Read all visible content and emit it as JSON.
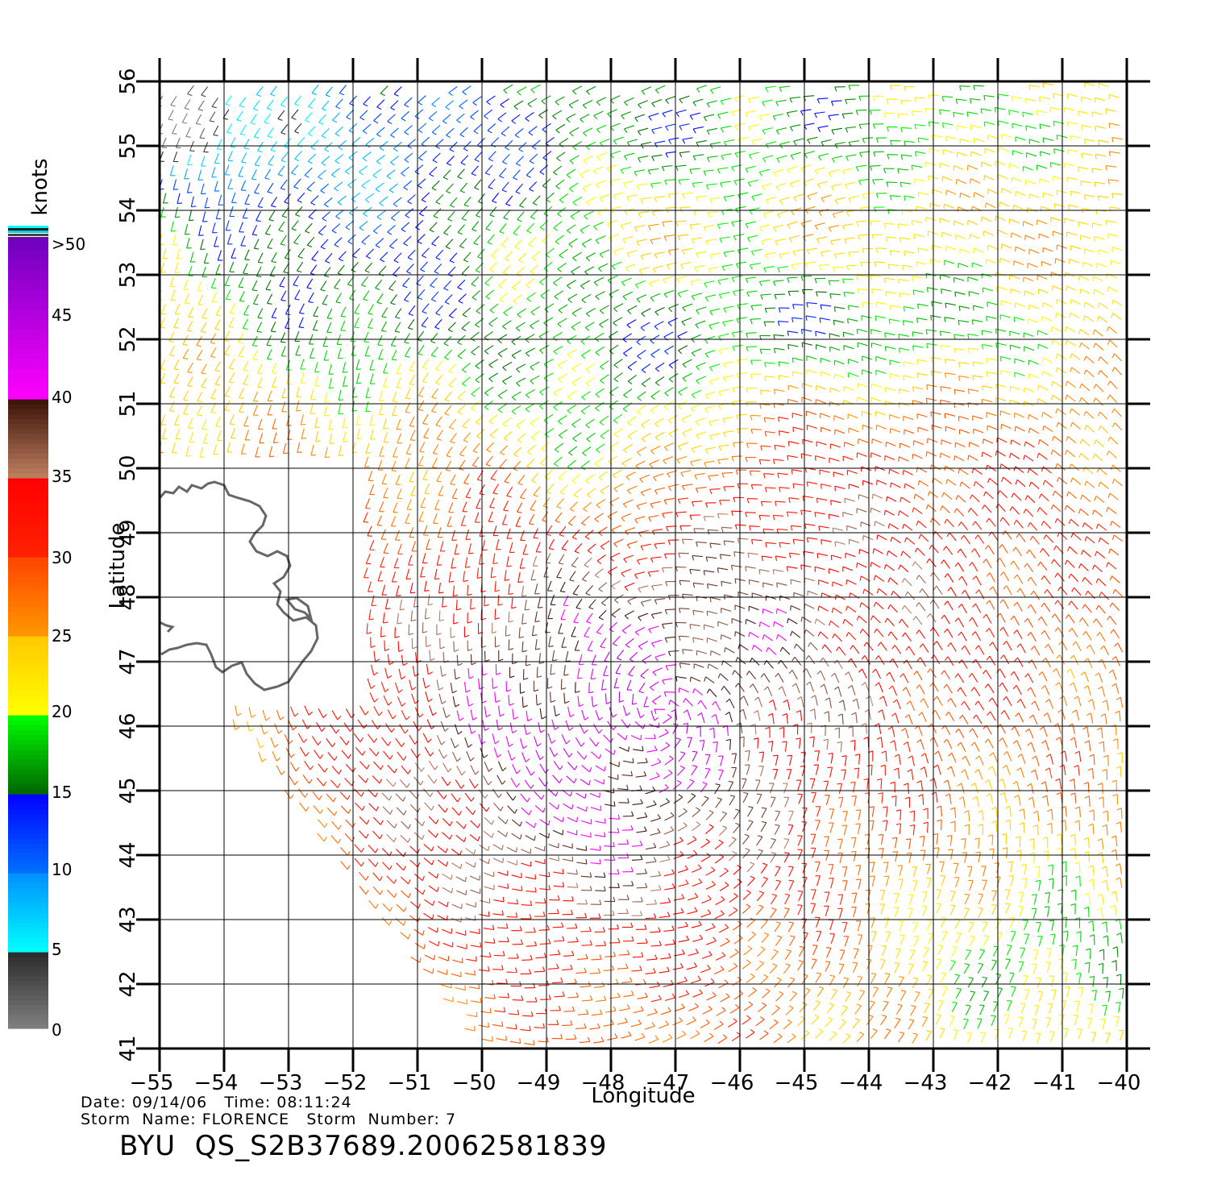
{
  "map": {
    "x_label": "Longitude",
    "y_label": "Latitude",
    "lon_ticks": [
      -55,
      -54,
      -53,
      -52,
      -51,
      -50,
      -49,
      -48,
      -47,
      -46,
      -45,
      -44,
      -43,
      -42,
      -41,
      -40
    ],
    "lat_ticks": [
      41,
      42,
      43,
      44,
      45,
      46,
      47,
      48,
      49,
      50,
      51,
      52,
      53,
      54,
      55,
      56
    ],
    "lon_tick_labels": [
      "−55",
      "−54",
      "−53",
      "−52",
      "−51",
      "−50",
      "−49",
      "−48",
      "−47",
      "−46",
      "−45",
      "−44",
      "−43",
      "−42",
      "−41",
      "−40"
    ],
    "lat_tick_labels": [
      "41",
      "42",
      "43",
      "44",
      "45",
      "46",
      "47",
      "48",
      "49",
      "50",
      "51",
      "52",
      "53",
      "54",
      "55",
      "56"
    ],
    "lon_range": [
      -55,
      -40
    ],
    "lat_range": [
      41,
      56
    ],
    "grid": true,
    "land_color": "#666666"
  },
  "legend": {
    "unit": "knots",
    "top_label": ">50",
    "bins": [
      {
        "min": 0,
        "max": 5,
        "label": "0",
        "color_from": "#808080",
        "color_to": "#2a2a2a"
      },
      {
        "min": 5,
        "max": 10,
        "label": "5",
        "color_from": "#00ffff",
        "color_to": "#0090ff"
      },
      {
        "min": 10,
        "max": 15,
        "label": "10",
        "color_from": "#0070ff",
        "color_to": "#0000ff"
      },
      {
        "min": 15,
        "max": 20,
        "label": "15",
        "color_from": "#006600",
        "color_to": "#00ff00"
      },
      {
        "min": 20,
        "max": 25,
        "label": "20",
        "color_from": "#ffff00",
        "color_to": "#ffc800"
      },
      {
        "min": 25,
        "max": 30,
        "label": "25",
        "color_from": "#ff9900",
        "color_to": "#ff4400"
      },
      {
        "min": 30,
        "max": 35,
        "label": "30",
        "color_from": "#ff2200",
        "color_to": "#ff0000"
      },
      {
        "min": 35,
        "max": 40,
        "label": "35",
        "color_from": "#c08060",
        "color_to": "#3a1008"
      },
      {
        "min": 40,
        "max": 50,
        "label": "40",
        "color_from": "#ff00ff",
        "color_to": "#7000c0"
      }
    ],
    "tick_labels": [
      "0",
      "5",
      "10",
      "15",
      "20",
      "25",
      "30",
      "35",
      "40",
      "45",
      ">50"
    ]
  },
  "chart_data": {
    "type": "wind_barb_map",
    "title": "BYU QS_S2B37689.20062581839",
    "xlabel": "Longitude",
    "ylabel": "Latitude",
    "xlim": [
      -55,
      -40
    ],
    "ylim": [
      41,
      56
    ],
    "grid": true,
    "legend": "left colorbar, knots",
    "wind_speed_regions_knots": [
      {
        "area": "far northwest corner",
        "lon": [
          -55,
          -53.5
        ],
        "lat": [
          55,
          56
        ],
        "speed": 3
      },
      {
        "area": "northwest",
        "lon": [
          -54.5,
          -50
        ],
        "lat": [
          53,
          56
        ],
        "speed": 10
      },
      {
        "area": "central north",
        "lon": [
          -50,
          -41
        ],
        "lat": [
          54,
          56
        ],
        "speed": 18
      },
      {
        "area": "north band",
        "lon": [
          -48,
          -40
        ],
        "lat": [
          53,
          54.5
        ],
        "speed": 28
      },
      {
        "area": "central east band",
        "lon": [
          -48,
          -40
        ],
        "lat": [
          51,
          53
        ],
        "speed": 17
      },
      {
        "area": "south-central core",
        "lon": [
          -51,
          -46
        ],
        "lat": [
          43,
          48
        ],
        "speed": 42
      },
      {
        "area": "southeast",
        "lon": [
          -43,
          -40
        ],
        "lat": [
          41,
          44
        ],
        "speed": 20
      }
    ],
    "storm_name": "FLORENCE",
    "storm_number": 7
  },
  "footer": {
    "date_label": "Date:",
    "date_value": "09/14/06",
    "time_label": "Time:",
    "time_value": "08:11:24",
    "storm_name_label": "Storm  Name:",
    "storm_name_value": "FLORENCE",
    "storm_number_label": "Storm  Number:",
    "storm_number_value": "7",
    "title": "BYU  QS_S2B37689.20062581839"
  }
}
